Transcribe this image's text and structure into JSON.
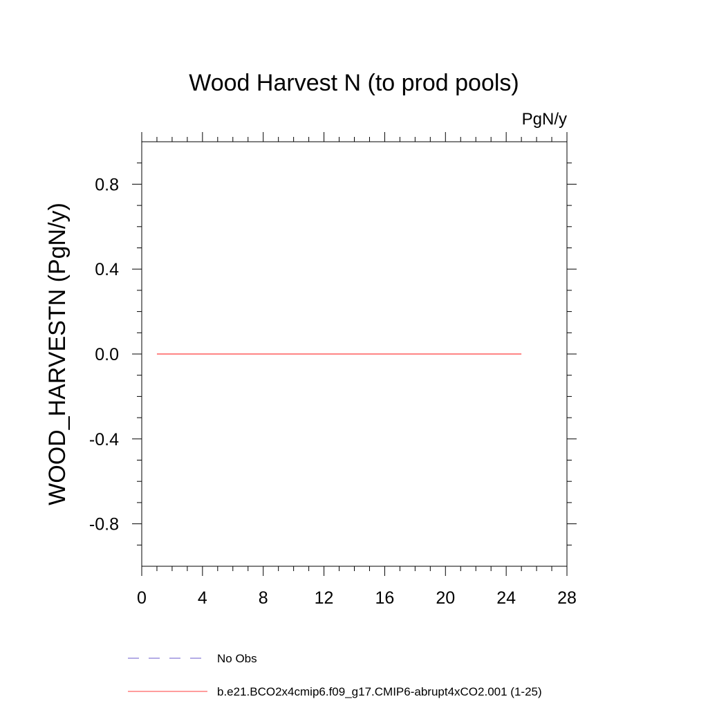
{
  "chart_data": {
    "type": "line",
    "title": "Wood Harvest N (to prod pools)",
    "units_label": "PgN/y",
    "xlabel": "",
    "ylabel": "WOOD_HARVESTN  (PgN/y)",
    "xlim": [
      0,
      28
    ],
    "ylim": [
      -1.0,
      1.0
    ],
    "x_ticks": [
      0,
      4,
      8,
      12,
      16,
      20,
      24,
      28
    ],
    "x_tick_labels": [
      "0",
      "4",
      "8",
      "12",
      "16",
      "20",
      "24",
      "28"
    ],
    "y_ticks": [
      -0.8,
      -0.4,
      0.0,
      0.4,
      0.8
    ],
    "y_tick_labels": [
      "-0.8",
      "-0.4",
      "0.0",
      "0.4",
      "0.8"
    ],
    "grid": false,
    "legend_position": "bottom",
    "series": [
      {
        "name": "No Obs",
        "color": "#6a5acd",
        "dashed": true,
        "x": [],
        "y": []
      },
      {
        "name": "b.e21.BCO2x4cmip6.f09_g17.CMIP6-abrupt4xCO2.001 (1-25)",
        "color": "#ff3b3b",
        "dashed": false,
        "x": [
          1,
          25
        ],
        "y": [
          0.0,
          0.0
        ]
      }
    ]
  }
}
